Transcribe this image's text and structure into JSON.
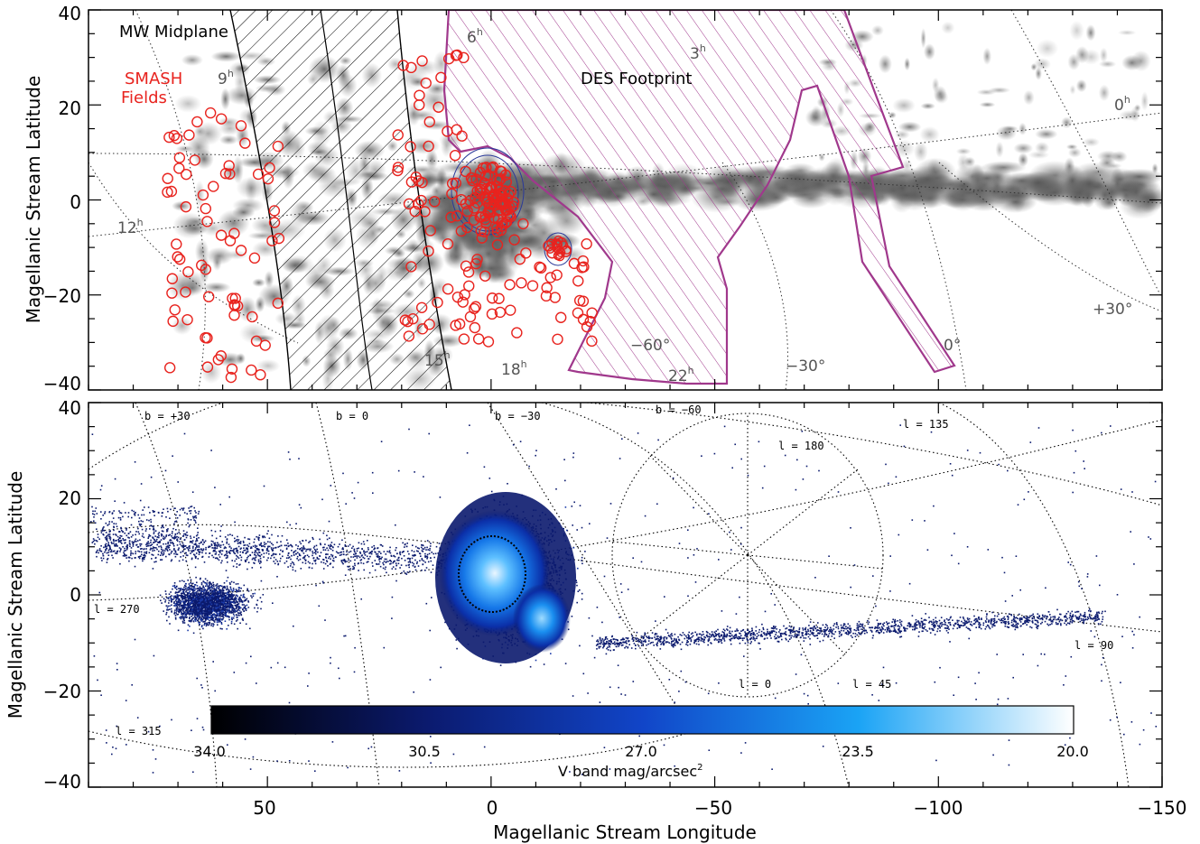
{
  "chart_data": [
    {
      "type": "scatter",
      "panel": "top",
      "description_source": "HI column density map with survey footprints",
      "xlim": [
        90,
        -150
      ],
      "ylim": [
        -40,
        40
      ],
      "ylabel": "Magellanic Stream Latitude",
      "yticks": [
        40,
        20,
        0,
        -20,
        -40
      ],
      "labels": {
        "mw_midplane": "MW Midplane",
        "smash_line1": "SMASH",
        "smash_line2": "Fields",
        "des": "DES Footprint"
      },
      "ra_labels": [
        {
          "text": "6",
          "sup": "h"
        },
        {
          "text": "3",
          "sup": "h"
        },
        {
          "text": "9",
          "sup": "h"
        },
        {
          "text": "0",
          "sup": "h"
        },
        {
          "text": "12",
          "sup": "h"
        },
        {
          "text": "15",
          "sup": "h"
        },
        {
          "text": "18",
          "sup": "h"
        },
        {
          "text": "22",
          "sup": "h"
        }
      ],
      "dec_labels": [
        "−60°",
        "−30°",
        "0°",
        "+30°"
      ],
      "colors": {
        "smash": "#e8231e",
        "des": "#a0388c",
        "hi": "#7a7a7a"
      }
    },
    {
      "type": "heatmap",
      "panel": "bottom",
      "xlim": [
        90,
        -150
      ],
      "ylim": [
        -40,
        40
      ],
      "xlabel": "Magellanic Stream Longitude",
      "ylabel": "Magellanic Stream Latitude",
      "xticks": [
        "50",
        "0",
        "−50",
        "−100",
        "−150"
      ],
      "yticks": [
        40,
        20,
        0,
        -20,
        -40
      ],
      "galactic_labels": [
        "b = +30",
        "b = 0",
        "b = −30",
        "b = −60",
        "l = 135",
        "l = 180",
        "l = 270",
        "l = 90",
        "l = 0",
        "l = 45",
        "l = 315"
      ],
      "colorbar": {
        "label": "V band mag/arcsec",
        "label_sup": "2",
        "ticks": [
          "34.0",
          "30.5",
          "27.0",
          "23.5",
          "20.0"
        ],
        "colors": [
          "#000000",
          "#0b1a6e",
          "#1145c8",
          "#1aa3f5",
          "#ffffff"
        ]
      }
    }
  ]
}
